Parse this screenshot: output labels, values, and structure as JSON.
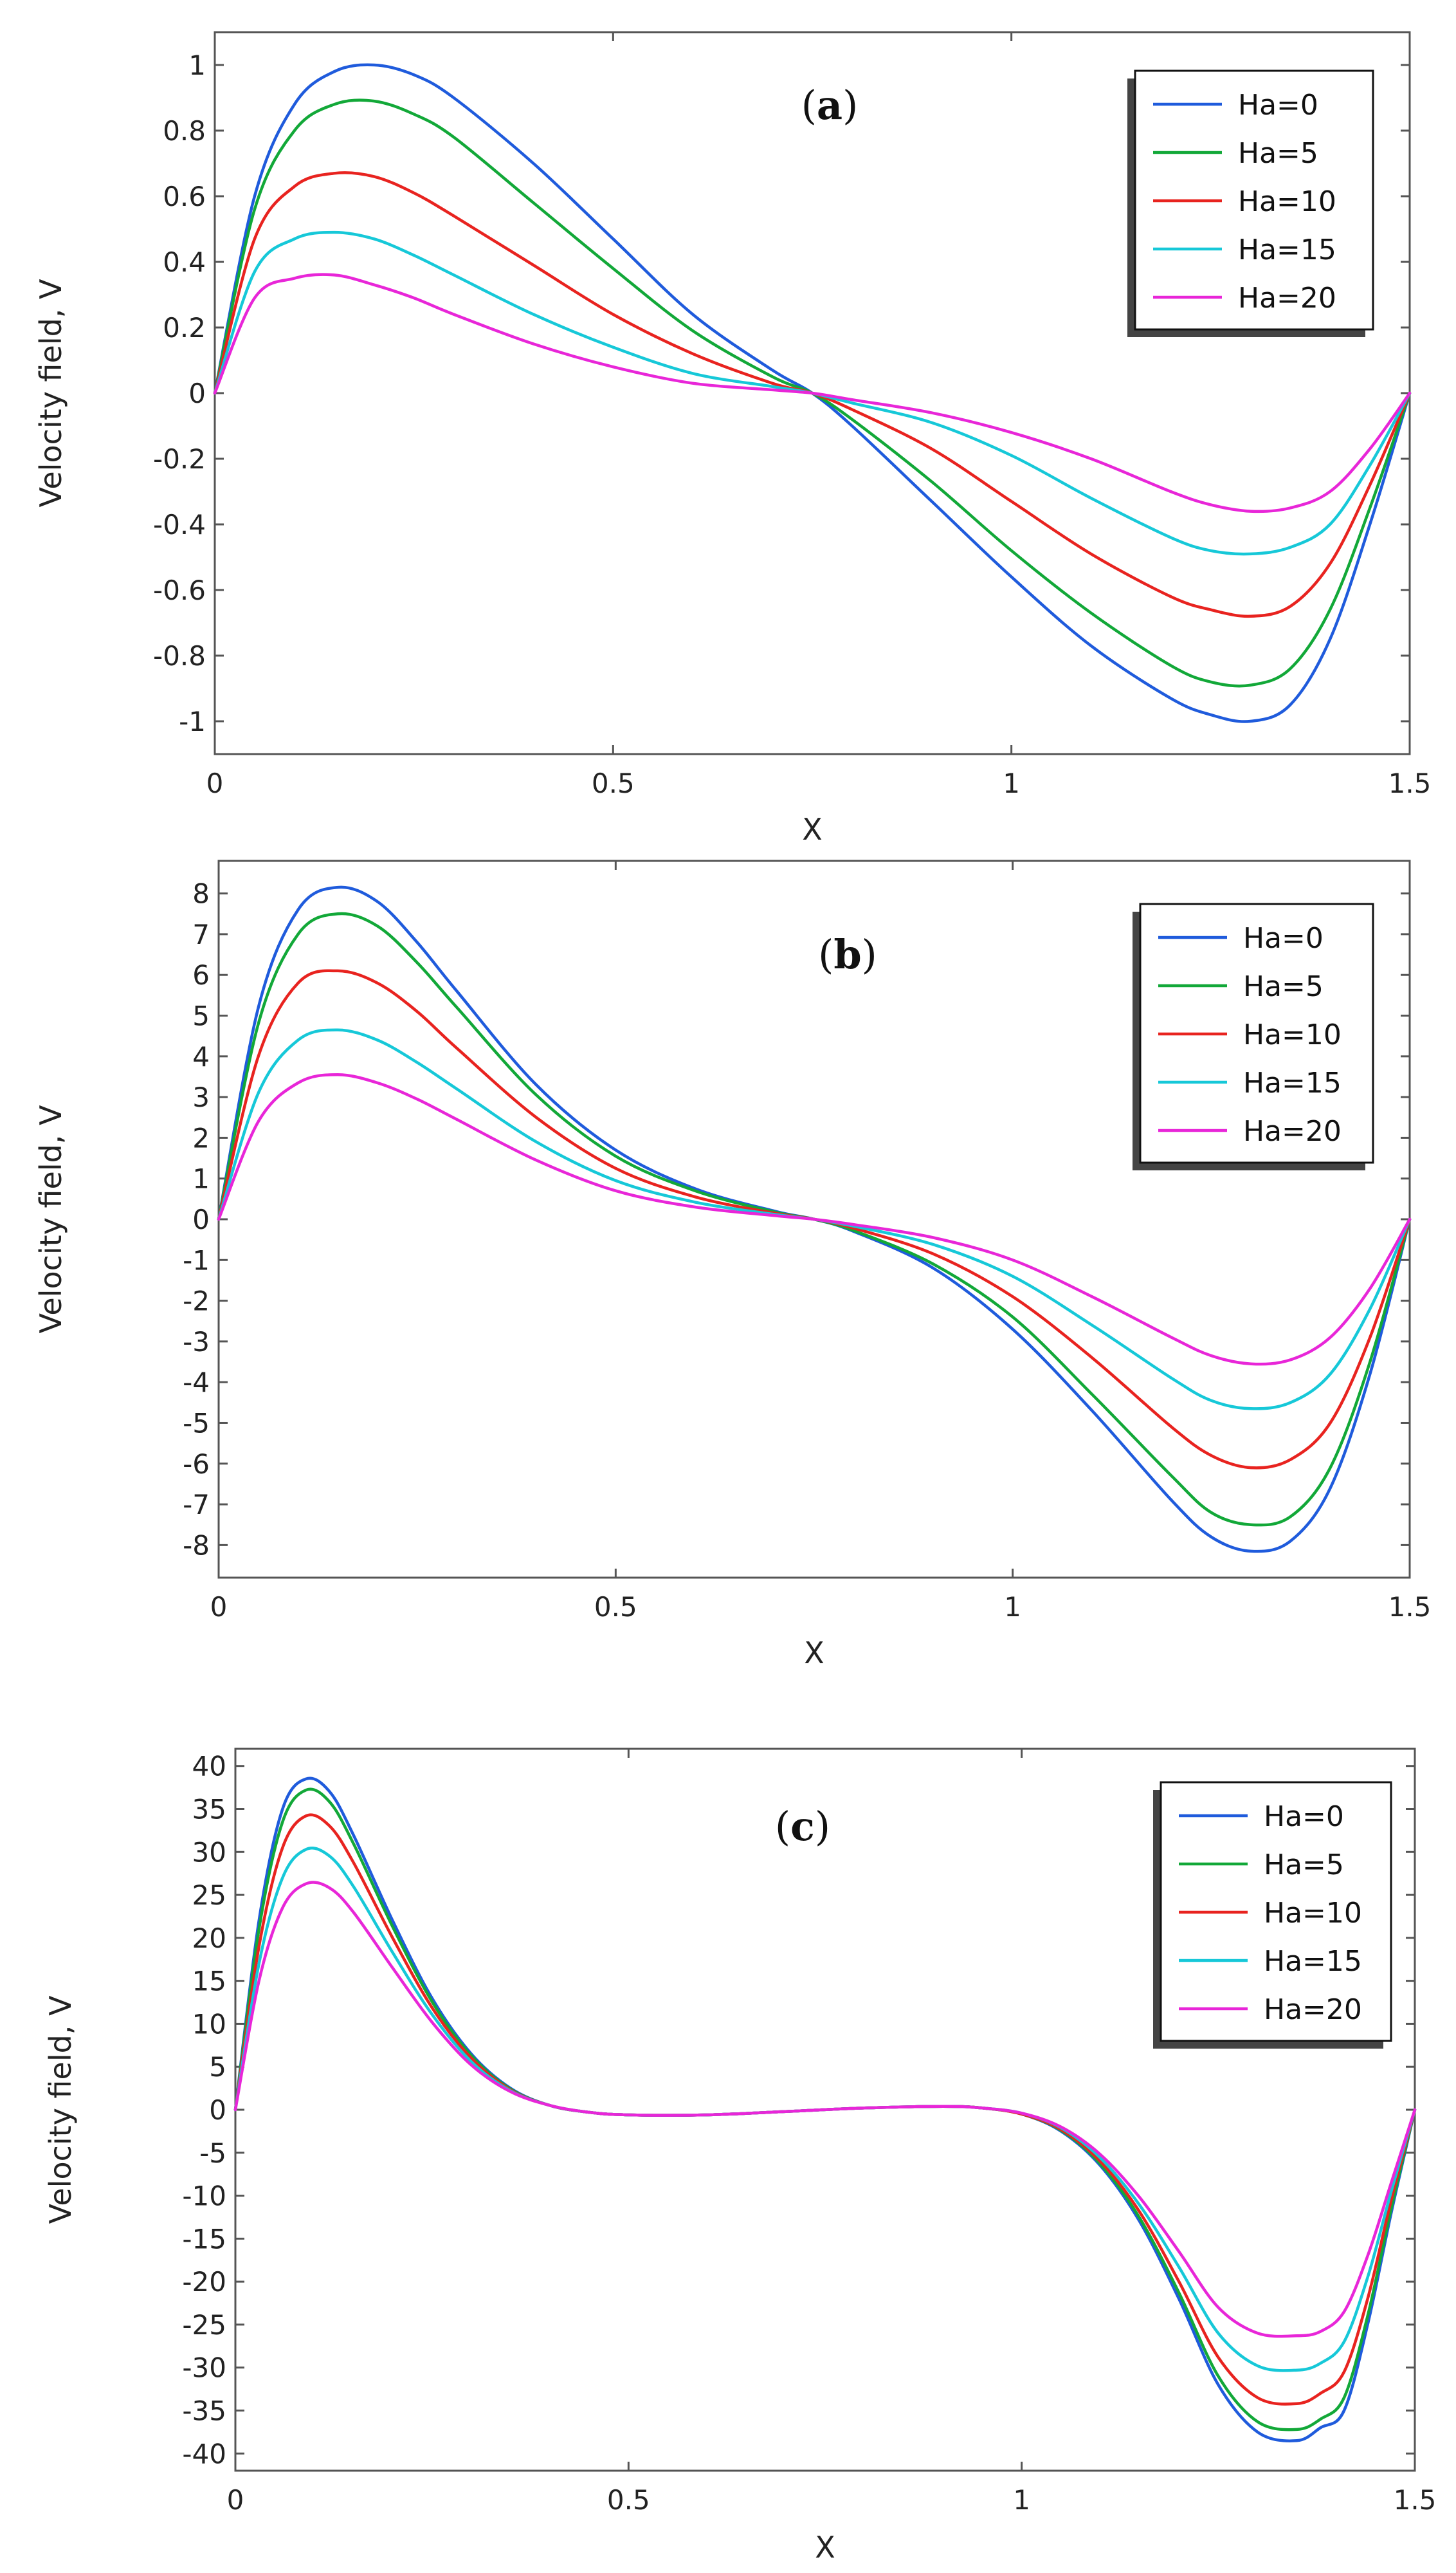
{
  "chart_data": [
    {
      "type": "line",
      "panel": "a",
      "title_prefix": "(",
      "title_letter": "a",
      "title_suffix": ")",
      "xlabel": "X",
      "ylabel": "Velocity field, V",
      "xlim": [
        0,
        1.5
      ],
      "ylim": [
        -1.1,
        1.1
      ],
      "xticks": [
        0,
        0.5,
        1,
        1.5
      ],
      "xtick_labels": [
        "0",
        "0.5",
        "1",
        "1.5"
      ],
      "yticks": [
        1,
        0.8,
        0.6,
        0.4,
        0.2,
        0,
        -0.2,
        -0.4,
        -0.6,
        -0.8,
        -1
      ],
      "ytick_labels": [
        "1",
        "0.8",
        "0.6",
        "0.4",
        "0.2",
        "0",
        "-0.2",
        "-0.4",
        "-0.6",
        "-0.8",
        "-1"
      ],
      "legend_position": "top-right",
      "series": [
        {
          "name": "Ha=0",
          "color": "#1f5bdc",
          "x": [
            0,
            0.05,
            0.1,
            0.15,
            0.2,
            0.25,
            0.3,
            0.4,
            0.5,
            0.6,
            0.7,
            0.75,
            0.8,
            0.9,
            1.0,
            1.1,
            1.2,
            1.25,
            1.3,
            1.35,
            1.4,
            1.45,
            1.5
          ],
          "y": [
            0,
            0.6,
            0.88,
            0.98,
            1.0,
            0.97,
            0.9,
            0.7,
            0.47,
            0.24,
            0.07,
            0,
            -0.1,
            -0.33,
            -0.56,
            -0.77,
            -0.93,
            -0.98,
            -1.0,
            -0.95,
            -0.75,
            -0.4,
            0
          ]
        },
        {
          "name": "Ha=5",
          "color": "#12a838",
          "x": [
            0,
            0.05,
            0.1,
            0.15,
            0.2,
            0.25,
            0.3,
            0.4,
            0.5,
            0.6,
            0.7,
            0.75,
            0.8,
            0.9,
            1.0,
            1.1,
            1.2,
            1.25,
            1.3,
            1.35,
            1.4,
            1.45,
            1.5
          ],
          "y": [
            0,
            0.56,
            0.8,
            0.88,
            0.89,
            0.85,
            0.78,
            0.58,
            0.38,
            0.19,
            0.05,
            0,
            -0.08,
            -0.27,
            -0.48,
            -0.67,
            -0.83,
            -0.88,
            -0.89,
            -0.84,
            -0.66,
            -0.35,
            0
          ]
        },
        {
          "name": "Ha=10",
          "color": "#e8231f",
          "x": [
            0,
            0.05,
            0.1,
            0.15,
            0.2,
            0.25,
            0.3,
            0.4,
            0.5,
            0.6,
            0.7,
            0.75,
            0.8,
            0.9,
            1.0,
            1.1,
            1.2,
            1.25,
            1.3,
            1.35,
            1.4,
            1.45,
            1.5
          ],
          "y": [
            0,
            0.47,
            0.63,
            0.67,
            0.66,
            0.61,
            0.54,
            0.39,
            0.24,
            0.12,
            0.03,
            0,
            -0.05,
            -0.17,
            -0.33,
            -0.49,
            -0.62,
            -0.66,
            -0.68,
            -0.65,
            -0.52,
            -0.28,
            0
          ]
        },
        {
          "name": "Ha=15",
          "color": "#16c8d8",
          "x": [
            0,
            0.05,
            0.1,
            0.15,
            0.2,
            0.25,
            0.3,
            0.4,
            0.5,
            0.6,
            0.7,
            0.75,
            0.8,
            0.9,
            1.0,
            1.1,
            1.2,
            1.25,
            1.3,
            1.35,
            1.4,
            1.45,
            1.5
          ],
          "y": [
            0,
            0.37,
            0.47,
            0.49,
            0.47,
            0.42,
            0.36,
            0.24,
            0.14,
            0.06,
            0.02,
            0,
            -0.03,
            -0.09,
            -0.19,
            -0.32,
            -0.44,
            -0.48,
            -0.49,
            -0.47,
            -0.4,
            -0.22,
            0
          ]
        },
        {
          "name": "Ha=20",
          "color": "#e826d8",
          "x": [
            0,
            0.05,
            0.1,
            0.15,
            0.2,
            0.25,
            0.3,
            0.4,
            0.5,
            0.6,
            0.7,
            0.75,
            0.8,
            0.9,
            1.0,
            1.1,
            1.2,
            1.25,
            1.3,
            1.35,
            1.4,
            1.45,
            1.5
          ],
          "y": [
            0,
            0.29,
            0.35,
            0.36,
            0.33,
            0.29,
            0.24,
            0.15,
            0.08,
            0.03,
            0.01,
            0,
            -0.02,
            -0.06,
            -0.12,
            -0.2,
            -0.3,
            -0.34,
            -0.36,
            -0.35,
            -0.3,
            -0.17,
            0
          ]
        }
      ]
    },
    {
      "type": "line",
      "panel": "b",
      "title_prefix": "(",
      "title_letter": "b",
      "title_suffix": ")",
      "xlabel": "X",
      "ylabel": "Velocity field, V",
      "xlim": [
        0,
        1.5
      ],
      "ylim": [
        -8.8,
        8.8
      ],
      "xticks": [
        0,
        0.5,
        1,
        1.5
      ],
      "xtick_labels": [
        "0",
        "0.5",
        "1",
        "1.5"
      ],
      "yticks": [
        8,
        7,
        6,
        5,
        4,
        3,
        2,
        1,
        0,
        -1,
        -2,
        -3,
        -4,
        -5,
        -6,
        -7,
        -8
      ],
      "ytick_labels": [
        "8",
        "7",
        "6",
        "5",
        "4",
        "3",
        "2",
        "1",
        "0",
        "-1",
        "-2",
        "-3",
        "-4",
        "-5",
        "-6",
        "-7",
        "-8"
      ],
      "legend_position": "top-right",
      "series": [
        {
          "name": "Ha=0",
          "color": "#1f5bdc",
          "x": [
            0,
            0.05,
            0.1,
            0.15,
            0.2,
            0.25,
            0.3,
            0.4,
            0.5,
            0.6,
            0.7,
            0.75,
            0.8,
            0.9,
            1.0,
            1.1,
            1.2,
            1.25,
            1.3,
            1.35,
            1.4,
            1.45,
            1.5
          ],
          "y": [
            0,
            5.2,
            7.6,
            8.15,
            7.8,
            6.8,
            5.6,
            3.3,
            1.7,
            0.75,
            0.2,
            0,
            -0.3,
            -1.2,
            -2.7,
            -4.7,
            -6.9,
            -7.8,
            -8.15,
            -7.9,
            -6.6,
            -3.8,
            0
          ]
        },
        {
          "name": "Ha=5",
          "color": "#12a838",
          "x": [
            0,
            0.05,
            0.1,
            0.15,
            0.2,
            0.25,
            0.3,
            0.4,
            0.5,
            0.6,
            0.7,
            0.75,
            0.8,
            0.9,
            1.0,
            1.1,
            1.2,
            1.25,
            1.3,
            1.35,
            1.4,
            1.45,
            1.5
          ],
          "y": [
            0,
            4.8,
            7.0,
            7.5,
            7.2,
            6.3,
            5.2,
            3.05,
            1.55,
            0.7,
            0.18,
            0,
            -0.28,
            -1.1,
            -2.4,
            -4.3,
            -6.3,
            -7.2,
            -7.5,
            -7.3,
            -6.1,
            -3.5,
            0
          ]
        },
        {
          "name": "Ha=10",
          "color": "#e8231f",
          "x": [
            0,
            0.05,
            0.1,
            0.15,
            0.2,
            0.25,
            0.3,
            0.4,
            0.5,
            0.6,
            0.7,
            0.75,
            0.8,
            0.9,
            1.0,
            1.1,
            1.2,
            1.25,
            1.3,
            1.35,
            1.4,
            1.45,
            1.5
          ],
          "y": [
            0,
            4.0,
            5.8,
            6.1,
            5.8,
            5.1,
            4.2,
            2.5,
            1.25,
            0.55,
            0.15,
            0,
            -0.22,
            -0.85,
            -1.9,
            -3.4,
            -5.1,
            -5.8,
            -6.1,
            -5.9,
            -5.0,
            -2.9,
            0
          ]
        },
        {
          "name": "Ha=15",
          "color": "#16c8d8",
          "x": [
            0,
            0.05,
            0.1,
            0.15,
            0.2,
            0.25,
            0.3,
            0.4,
            0.5,
            0.6,
            0.7,
            0.75,
            0.8,
            0.9,
            1.0,
            1.1,
            1.2,
            1.25,
            1.3,
            1.35,
            1.4,
            1.45,
            1.5
          ],
          "y": [
            0,
            3.1,
            4.4,
            4.65,
            4.4,
            3.85,
            3.2,
            1.9,
            0.95,
            0.42,
            0.12,
            0,
            -0.17,
            -0.62,
            -1.4,
            -2.6,
            -3.9,
            -4.45,
            -4.65,
            -4.5,
            -3.8,
            -2.2,
            0
          ]
        },
        {
          "name": "Ha=20",
          "color": "#e826d8",
          "x": [
            0,
            0.05,
            0.1,
            0.15,
            0.2,
            0.25,
            0.3,
            0.4,
            0.5,
            0.6,
            0.7,
            0.75,
            0.8,
            0.9,
            1.0,
            1.1,
            1.2,
            1.25,
            1.3,
            1.35,
            1.4,
            1.45,
            1.5
          ],
          "y": [
            0,
            2.4,
            3.35,
            3.55,
            3.35,
            2.95,
            2.45,
            1.45,
            0.7,
            0.3,
            0.09,
            0,
            -0.13,
            -0.45,
            -1.0,
            -1.9,
            -2.9,
            -3.35,
            -3.55,
            -3.45,
            -2.9,
            -1.7,
            0
          ]
        }
      ]
    },
    {
      "type": "line",
      "panel": "c",
      "title_prefix": "(",
      "title_letter": "c",
      "title_suffix": ")",
      "xlabel": "X",
      "ylabel": "Velocity field, V",
      "xlim": [
        0,
        1.5
      ],
      "ylim": [
        -42,
        42
      ],
      "xticks": [
        0,
        0.5,
        1,
        1.5
      ],
      "xtick_labels": [
        "0",
        "0.5",
        "1",
        "1.5"
      ],
      "yticks": [
        40,
        35,
        30,
        25,
        20,
        15,
        10,
        5,
        0,
        -5,
        -10,
        -15,
        -20,
        -25,
        -30,
        -35,
        -40
      ],
      "ytick_labels": [
        "40",
        "35",
        "30",
        "25",
        "20",
        "15",
        "10",
        "5",
        "0",
        "-5",
        "-10",
        "-15",
        "-20",
        "-25",
        "-30",
        "-35",
        "-40"
      ],
      "legend_position": "top-right",
      "series": [
        {
          "name": "Ha=0",
          "color": "#1f5bdc",
          "x": [
            0,
            0.03,
            0.06,
            0.09,
            0.12,
            0.15,
            0.2,
            0.25,
            0.3,
            0.35,
            0.4,
            0.45,
            0.5,
            0.6,
            0.7,
            0.8,
            0.9,
            0.95,
            1.0,
            1.05,
            1.1,
            1.15,
            1.2,
            1.25,
            1.3,
            1.35,
            1.38,
            1.41,
            1.44,
            1.47,
            1.5
          ],
          "y": [
            0,
            22,
            35,
            38.5,
            37,
            32,
            22,
            13,
            6.5,
            2.5,
            0.5,
            -0.3,
            -0.6,
            -0.6,
            -0.2,
            0.2,
            0.4,
            0.2,
            -0.5,
            -2.5,
            -6.5,
            -13,
            -22,
            -32,
            -37.5,
            -38.5,
            -37,
            -35,
            -25,
            -12,
            0
          ]
        },
        {
          "name": "Ha=5",
          "color": "#12a838",
          "x": [
            0,
            0.03,
            0.06,
            0.09,
            0.12,
            0.15,
            0.2,
            0.25,
            0.3,
            0.35,
            0.4,
            0.45,
            0.5,
            0.6,
            0.7,
            0.8,
            0.9,
            0.95,
            1.0,
            1.05,
            1.1,
            1.15,
            1.2,
            1.25,
            1.3,
            1.35,
            1.38,
            1.41,
            1.44,
            1.47,
            1.5
          ],
          "y": [
            0,
            21,
            33.5,
            37.2,
            35.8,
            31,
            21.3,
            12.6,
            6.3,
            2.4,
            0.5,
            -0.3,
            -0.6,
            -0.6,
            -0.2,
            0.2,
            0.4,
            0.2,
            -0.5,
            -2.4,
            -6.3,
            -12.6,
            -21.3,
            -31,
            -36.3,
            -37.2,
            -36,
            -33.5,
            -24,
            -11.5,
            0
          ]
        },
        {
          "name": "Ha=10",
          "color": "#e8231f",
          "x": [
            0,
            0.03,
            0.06,
            0.09,
            0.12,
            0.15,
            0.2,
            0.25,
            0.3,
            0.35,
            0.4,
            0.45,
            0.5,
            0.6,
            0.7,
            0.8,
            0.9,
            0.95,
            1.0,
            1.05,
            1.1,
            1.15,
            1.2,
            1.25,
            1.3,
            1.35,
            1.38,
            1.41,
            1.44,
            1.47,
            1.5
          ],
          "y": [
            0,
            19,
            30.5,
            34.2,
            33,
            28.8,
            20,
            11.9,
            6,
            2.3,
            0.5,
            -0.3,
            -0.6,
            -0.6,
            -0.2,
            0.2,
            0.4,
            0.2,
            -0.5,
            -2.3,
            -6,
            -11.9,
            -20,
            -28.8,
            -33.5,
            -34.2,
            -33,
            -30.5,
            -22,
            -10.5,
            0
          ]
        },
        {
          "name": "Ha=15",
          "color": "#16c8d8",
          "x": [
            0,
            0.03,
            0.06,
            0.09,
            0.12,
            0.15,
            0.2,
            0.25,
            0.3,
            0.35,
            0.4,
            0.45,
            0.5,
            0.6,
            0.7,
            0.8,
            0.9,
            0.95,
            1.0,
            1.05,
            1.1,
            1.15,
            1.2,
            1.25,
            1.3,
            1.35,
            1.38,
            1.41,
            1.44,
            1.47,
            1.5
          ],
          "y": [
            0,
            17,
            27,
            30.3,
            29.5,
            26,
            18.3,
            11.1,
            5.6,
            2.2,
            0.5,
            -0.3,
            -0.6,
            -0.6,
            -0.2,
            0.2,
            0.4,
            0.2,
            -0.4,
            -2.1,
            -5.6,
            -11.1,
            -18.3,
            -26,
            -29.8,
            -30.3,
            -29.5,
            -27,
            -19.5,
            -9.5,
            0
          ]
        },
        {
          "name": "Ha=20",
          "color": "#e826d8",
          "x": [
            0,
            0.03,
            0.06,
            0.09,
            0.12,
            0.15,
            0.2,
            0.25,
            0.3,
            0.35,
            0.4,
            0.45,
            0.5,
            0.6,
            0.7,
            0.8,
            0.9,
            0.95,
            1.0,
            1.05,
            1.1,
            1.15,
            1.2,
            1.25,
            1.3,
            1.35,
            1.38,
            1.41,
            1.44,
            1.47,
            1.5
          ],
          "y": [
            0,
            15,
            23.5,
            26.3,
            25.8,
            23,
            16.5,
            10.2,
            5.2,
            2.1,
            0.5,
            -0.3,
            -0.6,
            -0.6,
            -0.2,
            0.2,
            0.4,
            0.2,
            -0.4,
            -2,
            -5.2,
            -10.2,
            -16.5,
            -23,
            -26,
            -26.3,
            -25.8,
            -23.5,
            -17,
            -8.5,
            0
          ]
        }
      ]
    }
  ]
}
